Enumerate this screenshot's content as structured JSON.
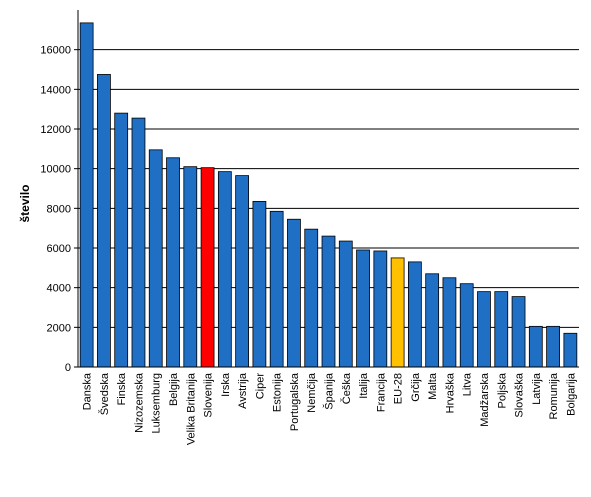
{
  "chart_data": {
    "type": "bar",
    "xlabel": "",
    "ylabel": "število",
    "ylim": [
      0,
      18000
    ],
    "yticks": [
      0,
      2000,
      4000,
      6000,
      8000,
      10000,
      12000,
      14000,
      16000
    ],
    "grid": true,
    "categories": [
      "Danska",
      "Švedska",
      "Finska",
      "Nizozemska",
      "Luksemburg",
      "Belgija",
      "Velika Britanija",
      "Slovenija",
      "Irska",
      "Avstrija",
      "Ciper",
      "Estonija",
      "Portugalska",
      "Nemčija",
      "Španija",
      "Češka",
      "Italija",
      "Francija",
      "EU-28",
      "Grčija",
      "Malta",
      "Hrvaška",
      "Litva",
      "Madžarska",
      "Poljska",
      "Slovaška",
      "Latvija",
      "Romunija",
      "Bolgarija"
    ],
    "values": [
      17350,
      14750,
      12800,
      12550,
      10950,
      10550,
      10100,
      10050,
      9850,
      9650,
      8350,
      7850,
      7450,
      6950,
      6600,
      6350,
      5900,
      5850,
      5500,
      5300,
      4700,
      4500,
      4200,
      3800,
      3800,
      3550,
      2050,
      2050,
      1700
    ],
    "colors": {
      "default": "#1F6FC5",
      "highlight_Slovenija": "#FF0000",
      "highlight_EU-28": "#FFC000",
      "bar_outline": "#000000",
      "grid": "#000000"
    }
  }
}
